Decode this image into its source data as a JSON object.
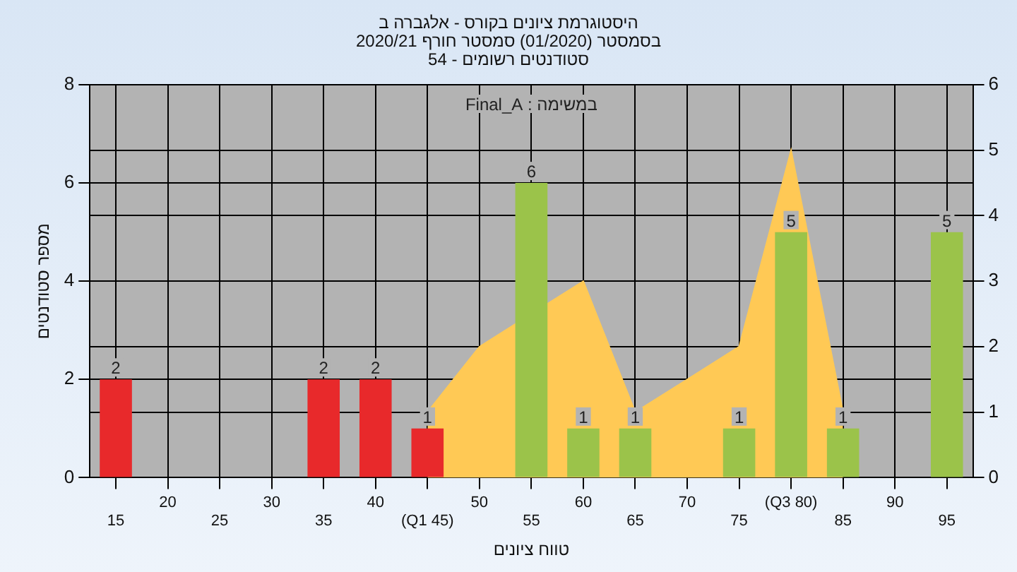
{
  "chart_data": {
    "type": "bar",
    "title": "היסטוגרמת ציונים בקורס - אלגברה ב\nבסמסטר (01/2020) סמסטר חורף 2020/21\nסטודנטים רשומים - 54",
    "annotations": [
      "במשימה : Final_A"
    ],
    "xlabel": "טווח ציונים",
    "ylabel": "מספר סטודנטים",
    "categories": [
      "15",
      "20",
      "25",
      "30",
      "35",
      "40",
      "(Q1 45)",
      "50",
      "55",
      "60",
      "65",
      "70",
      "75",
      "(Q3 80)",
      "85",
      "90",
      "95"
    ],
    "series": [
      {
        "colors": [
          "#e8292b",
          "#e8292b",
          "#e8292b",
          "#e8292b",
          "#e8292b",
          "#e8292b",
          "#e8292b",
          "#9bc34a",
          "#9bc34a",
          "#9bc34a",
          "#9bc34a",
          "#9bc34a",
          "#9bc34a",
          "#9bc34a",
          "#9bc34a",
          "#9bc34a",
          "#9bc34a"
        ],
        "values": [
          2,
          0,
          0,
          0,
          2,
          2,
          1,
          0,
          6,
          1,
          1,
          0,
          1,
          5,
          1,
          0,
          5
        ],
        "value_labels": [
          "2",
          null,
          null,
          null,
          "2",
          "2",
          "1",
          null,
          "6",
          "1",
          "1",
          null,
          "1",
          "5",
          "1",
          null,
          "5"
        ]
      },
      {
        "type": "area",
        "axis": "y2",
        "color": "#ffc955",
        "values": [
          null,
          null,
          null,
          null,
          null,
          null,
          1,
          2,
          null,
          3,
          1,
          1.5,
          2,
          5,
          1,
          null,
          null
        ]
      }
    ],
    "ylim": [
      0,
      8
    ],
    "yticks": [
      0,
      2,
      4,
      6,
      8
    ],
    "y2lim": [
      0,
      6
    ],
    "y2ticks": [
      0,
      1,
      2,
      3,
      4,
      5,
      6
    ],
    "grid": true
  }
}
